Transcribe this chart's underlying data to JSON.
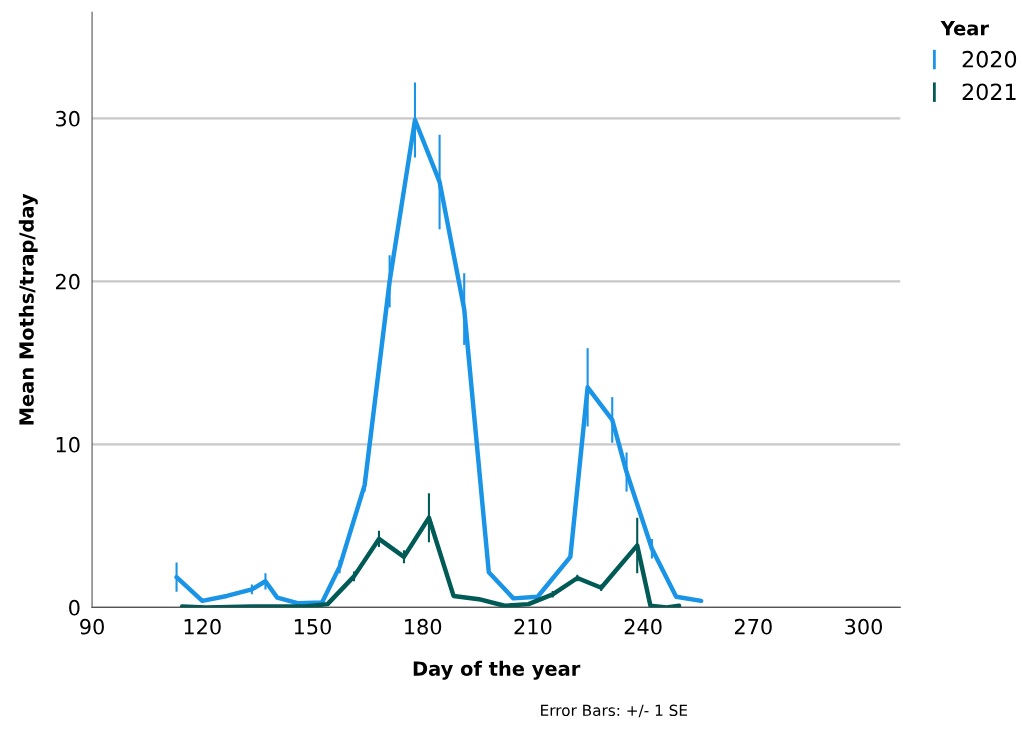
{
  "chart_data": {
    "type": "line",
    "xlabel": "Day of the year",
    "ylabel": "Mean Moths/trap/day",
    "legend_title": "Year",
    "xlim": [
      90,
      310
    ],
    "xticks": [
      90,
      120,
      150,
      180,
      210,
      240,
      270,
      300
    ],
    "ylim": [
      0,
      36.5
    ],
    "yticks": [
      0,
      10,
      20,
      30
    ],
    "grid": "y",
    "legend": "top right",
    "marker": "none",
    "line_style": "solid",
    "annotations": [
      "Error Bars: +/- 1 SE"
    ],
    "series": [
      {
        "name": "2020",
        "color": "#1a94e6",
        "x": [
          113,
          120,
          126.7,
          133.5,
          137.2,
          140.4,
          146.2,
          152.6,
          157.4,
          164.2,
          171,
          177.9,
          184.6,
          191.3,
          198,
          204.7,
          211.3,
          220.2,
          224.9,
          231.6,
          235.5,
          242.4,
          249,
          255.8
        ],
        "values": [
          1.85,
          0.4,
          0.7,
          1.1,
          1.6,
          0.6,
          0.25,
          0.3,
          2.5,
          7.5,
          20.0,
          29.9,
          26.1,
          18.3,
          2.15,
          0.55,
          0.65,
          3.1,
          13.5,
          11.5,
          8.3,
          3.6,
          0.65,
          0.4
        ],
        "errors": [
          0.9,
          null,
          null,
          0.3,
          0.5,
          null,
          null,
          null,
          0.4,
          0.4,
          1.6,
          2.3,
          2.9,
          2.2,
          null,
          null,
          null,
          null,
          2.4,
          1.4,
          1.2,
          0.6,
          null,
          null
        ]
      },
      {
        "name": "2021",
        "color": "#005a55",
        "x": [
          114.5,
          121,
          133.6,
          140.7,
          148,
          154.1,
          161.3,
          168.1,
          174.9,
          181.7,
          188.4,
          195.3,
          202.3,
          208.8,
          215.4,
          222.1,
          228.6,
          238.4,
          242,
          246.4,
          249.8
        ],
        "values": [
          0.05,
          0.0,
          0.05,
          0.05,
          0.05,
          0.2,
          1.9,
          4.2,
          3.1,
          5.5,
          0.7,
          0.5,
          0.1,
          0.2,
          0.8,
          1.8,
          1.2,
          3.8,
          0.1,
          0.0,
          0.1
        ],
        "errors": [
          null,
          null,
          null,
          null,
          null,
          null,
          0.3,
          0.5,
          0.4,
          1.5,
          null,
          null,
          null,
          null,
          0.2,
          0.2,
          0.2,
          1.7,
          null,
          null,
          null
        ]
      }
    ]
  }
}
